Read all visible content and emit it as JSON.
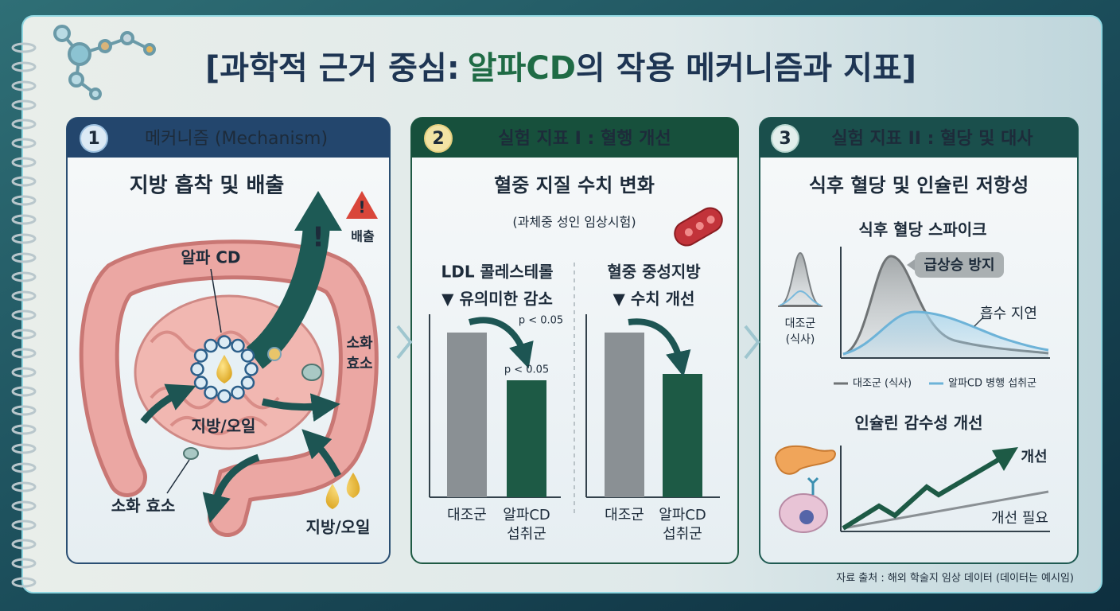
{
  "header": {
    "title_parts": [
      "[과학적 근거 중심:",
      "알파CD",
      "의 작용 메커니즘과 지표]"
    ]
  },
  "panels": [
    {
      "number": 1,
      "title": "메커니즘 (Mechanism)",
      "subtitle": "지방 흡착 및 배출",
      "labels": {
        "excretion": "배출",
        "alpha_cd": "알파 CD",
        "enzyme_right": [
          "소화",
          "효소"
        ],
        "fat_center": "지방/오일",
        "enzyme_left": "소화 효소",
        "fat_bottom": "지방/오일"
      }
    },
    {
      "number": 2,
      "title": "실험 지표 I : 혈행 개선",
      "subtitle": "혈중 지질 수치 변화",
      "note": "(과체중 성인 임상시험)",
      "charts": [
        {
          "title": "LDL 콜레스테롤",
          "result": "▼ 유의미한 감소",
          "p_labels": [
            "p < 0.05",
            "p < 0.05"
          ],
          "categories": [
            "대조군",
            [
              "알파CD",
              "섭취군"
            ]
          ]
        },
        {
          "title": "혈중 중성지방",
          "result": "▼ 수치 개선",
          "categories": [
            "대조군",
            [
              "알파CD",
              "섭취군"
            ]
          ]
        }
      ]
    },
    {
      "number": 3,
      "title": "실험 지표 II : 혈당 및 대사",
      "subtitle": "식후 혈당 및 인슐린 저항성",
      "glucose": {
        "title": "식후 혈당 스파이크",
        "callout": "급상승 방지",
        "delay": "흡수 지연",
        "thumb_label": [
          "대조군",
          "(식사)"
        ],
        "legend": [
          "대조군 (식사)",
          "알파CD 병행 섭취군"
        ]
      },
      "insulin": {
        "title": "인슐린 감수성 개선",
        "improved": "개선",
        "needs": "개선 필요"
      }
    }
  ],
  "footer": {
    "source": "자료 출처 : 해외 학술지 임상 데이터 (데이터는 예시임)"
  }
}
